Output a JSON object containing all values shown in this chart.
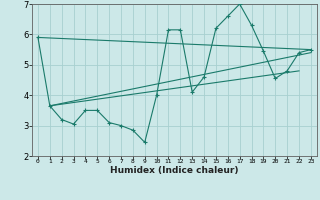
{
  "xlabel": "Humidex (Indice chaleur)",
  "bg_color": "#cce8e8",
  "grid_color": "#a8d0d0",
  "line_color": "#1a7a6a",
  "marker_color": "#1a7a6a",
  "xlim": [
    -0.5,
    23.5
  ],
  "ylim": [
    2,
    7
  ],
  "xticks": [
    0,
    1,
    2,
    3,
    4,
    5,
    6,
    7,
    8,
    9,
    10,
    11,
    12,
    13,
    14,
    15,
    16,
    17,
    18,
    19,
    20,
    21,
    22,
    23
  ],
  "yticks": [
    2,
    3,
    4,
    5,
    6,
    7
  ],
  "series": [
    [
      0,
      5.9
    ],
    [
      1,
      3.65
    ],
    [
      2,
      3.2
    ],
    [
      3,
      3.05
    ],
    [
      4,
      3.5
    ],
    [
      5,
      3.5
    ],
    [
      6,
      3.1
    ],
    [
      7,
      3.0
    ],
    [
      8,
      2.85
    ],
    [
      9,
      2.45
    ],
    [
      10,
      4.0
    ],
    [
      11,
      6.15
    ],
    [
      12,
      6.15
    ],
    [
      13,
      4.1
    ],
    [
      14,
      4.6
    ],
    [
      15,
      6.2
    ],
    [
      16,
      6.6
    ],
    [
      17,
      7.0
    ],
    [
      18,
      6.3
    ],
    [
      19,
      5.45
    ],
    [
      20,
      4.55
    ],
    [
      21,
      4.8
    ],
    [
      22,
      5.4
    ],
    [
      23,
      5.5
    ]
  ],
  "line1": [
    [
      0,
      5.9
    ],
    [
      23,
      5.5
    ]
  ],
  "line2": [
    [
      1,
      3.65
    ],
    [
      23,
      5.4
    ]
  ],
  "line3": [
    [
      1,
      3.65
    ],
    [
      22,
      4.8
    ]
  ]
}
